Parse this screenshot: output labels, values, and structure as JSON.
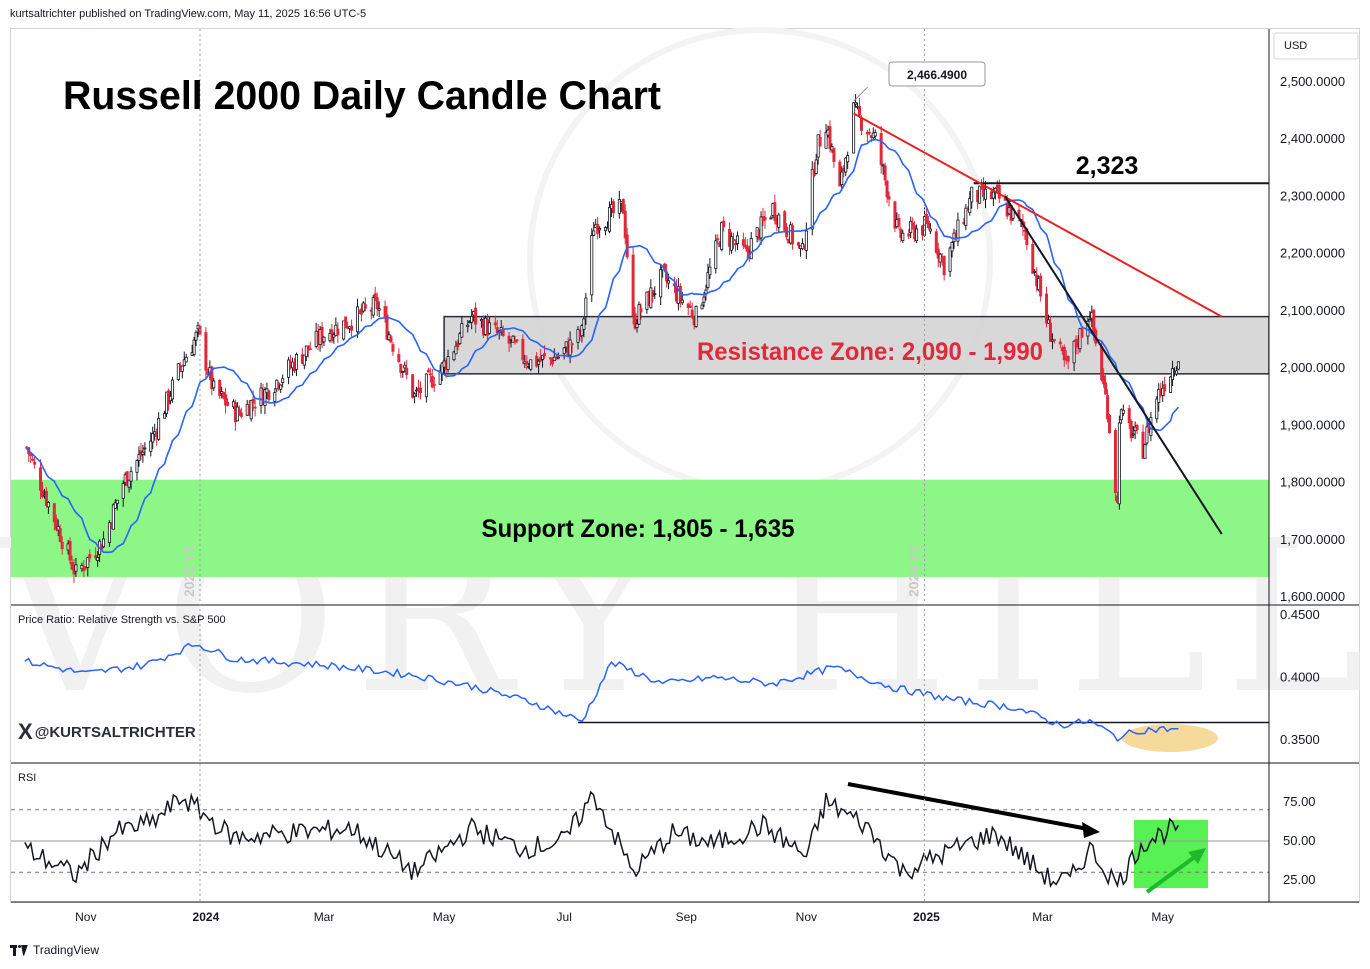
{
  "header": {
    "published": "kurtsaltrichter published on TradingView.com, May 11, 2025 16:56 UTC-5"
  },
  "footer": {
    "brand": "TradingView"
  },
  "handle": {
    "x_icon": "X",
    "name": "@KURTSALTRICHTER"
  },
  "watermark": "IVORY HILL",
  "colors": {
    "up": "#131722",
    "down": "#e0293b",
    "ma": "#2962ff",
    "resistance_line": "#e82020",
    "support_fill": "#86f57f",
    "resistance_fill": "#d4d4d4",
    "ratio_highlight": "#f5d48a",
    "rsi_highlight": "#4ef04a"
  },
  "chart_data": [
    {
      "type": "candlestick",
      "title": "Russell 2000 Daily Candle Chart",
      "currency": "USD",
      "ylim": [
        1590,
        2550
      ],
      "y_ticks": [
        "2,500.0000",
        "2,400.0000",
        "2,300.0000",
        "2,200.0000",
        "2,100.0000",
        "2,000.0000",
        "1,900.0000",
        "1,800.0000",
        "1,700.0000",
        "1,600.0000"
      ],
      "x_ticks": [
        "Nov",
        "2024",
        "Mar",
        "May",
        "Jul",
        "Sep",
        "Nov",
        "2025",
        "Mar",
        "May"
      ],
      "year_end_labels": [
        "2023 YE",
        "2024 YE"
      ],
      "series_anchor_closes": [
        [
          "2023-10-01",
          1870
        ],
        [
          "2023-10-10",
          1790
        ],
        [
          "2023-10-27",
          1640
        ],
        [
          "2023-11-10",
          1700
        ],
        [
          "2023-11-20",
          1800
        ],
        [
          "2023-12-05",
          1880
        ],
        [
          "2023-12-20",
          2010
        ],
        [
          "2023-12-28",
          2060
        ],
        [
          "2024-01-05",
          1960
        ],
        [
          "2024-01-17",
          1920
        ],
        [
          "2024-02-01",
          1960
        ],
        [
          "2024-02-15",
          2010
        ],
        [
          "2024-03-01",
          2060
        ],
        [
          "2024-03-13",
          2080
        ],
        [
          "2024-03-28",
          2110
        ],
        [
          "2024-04-16",
          1950
        ],
        [
          "2024-04-30",
          2000
        ],
        [
          "2024-05-15",
          2090
        ],
        [
          "2024-06-01",
          2050
        ],
        [
          "2024-06-14",
          2010
        ],
        [
          "2024-06-28",
          2020
        ],
        [
          "2024-07-10",
          2060
        ],
        [
          "2024-07-16",
          2250
        ],
        [
          "2024-07-31",
          2280
        ],
        [
          "2024-08-05",
          2080
        ],
        [
          "2024-08-20",
          2160
        ],
        [
          "2024-09-06",
          2090
        ],
        [
          "2024-09-19",
          2240
        ],
        [
          "2024-10-01",
          2200
        ],
        [
          "2024-10-15",
          2280
        ],
        [
          "2024-10-30",
          2200
        ],
        [
          "2024-11-06",
          2380
        ],
        [
          "2024-11-11",
          2430
        ],
        [
          "2024-11-18",
          2310
        ],
        [
          "2024-11-25",
          2450
        ],
        [
          "2024-12-06",
          2400
        ],
        [
          "2024-12-18",
          2230
        ],
        [
          "2025-01-02",
          2250
        ],
        [
          "2025-01-10",
          2180
        ],
        [
          "2025-01-24",
          2300
        ],
        [
          "2025-02-06",
          2300
        ],
        [
          "2025-02-20",
          2240
        ],
        [
          "2025-03-04",
          2070
        ],
        [
          "2025-03-13",
          2000
        ],
        [
          "2025-03-25",
          2100
        ],
        [
          "2025-04-03",
          1930
        ],
        [
          "2025-04-08",
          1760
        ],
        [
          "2025-04-09",
          1920
        ],
        [
          "2025-04-21",
          1860
        ],
        [
          "2025-04-28",
          1950
        ],
        [
          "2025-05-09",
          2020
        ]
      ],
      "last_close": 2020,
      "annotations": [
        {
          "text": "2,466.4900",
          "kind": "high-callout",
          "date": "2024-11-25",
          "value": 2466.49
        },
        {
          "text": "2,323",
          "kind": "horizontal-level",
          "value": 2323
        },
        {
          "text": "Resistance Zone: 2,090 - 1,990",
          "kind": "zone",
          "from": 1990,
          "to": 2090
        },
        {
          "text": "Support Zone: 1,805 - 1,635",
          "kind": "zone",
          "from": 1635,
          "to": 1805
        }
      ],
      "trendlines": [
        {
          "kind": "resistance",
          "from": [
            "2024-11-25",
            2445
          ],
          "to": [
            "2025-05-31",
            2090
          ]
        },
        {
          "kind": "breakout",
          "from": [
            "2025-02-10",
            2300
          ],
          "to": [
            "2025-05-31",
            1710
          ]
        }
      ],
      "moving_average": true
    },
    {
      "type": "line",
      "title": "Price Ratio: Relative Strength vs. S&P 500",
      "ylim": [
        0.33,
        0.455
      ],
      "y_ticks": [
        "0.4500",
        "0.4000",
        "0.3500"
      ],
      "x": [
        "2023-10-01",
        "2023-11-01",
        "2023-12-01",
        "2023-12-27",
        "2024-01-15",
        "2024-03-01",
        "2024-04-15",
        "2024-05-15",
        "2024-06-15",
        "2024-07-10",
        "2024-07-25",
        "2024-08-20",
        "2024-09-15",
        "2024-10-15",
        "2024-11-15",
        "2024-12-15",
        "2025-01-15",
        "2025-02-15",
        "2025-03-10",
        "2025-03-25",
        "2025-04-08",
        "2025-04-20",
        "2025-05-09"
      ],
      "values": [
        0.413,
        0.403,
        0.41,
        0.427,
        0.415,
        0.41,
        0.402,
        0.393,
        0.38,
        0.365,
        0.412,
        0.395,
        0.4,
        0.395,
        0.408,
        0.392,
        0.382,
        0.376,
        0.362,
        0.365,
        0.352,
        0.358,
        0.359
      ],
      "support_level": 0.364
    },
    {
      "type": "line",
      "title": "RSI",
      "ylim": [
        0,
        100
      ],
      "y_ticks": [
        "75.00",
        "50.00",
        "25.00"
      ],
      "bands": [
        30,
        70
      ],
      "x": [
        "2023-10-01",
        "2023-10-27",
        "2023-11-15",
        "2023-12-05",
        "2023-12-20",
        "2024-01-15",
        "2024-02-10",
        "2024-03-15",
        "2024-04-16",
        "2024-05-15",
        "2024-06-10",
        "2024-07-01",
        "2024-07-16",
        "2024-08-05",
        "2024-08-25",
        "2024-09-15",
        "2024-10-10",
        "2024-11-01",
        "2024-11-11",
        "2024-12-01",
        "2024-12-20",
        "2025-01-15",
        "2025-02-05",
        "2025-03-05",
        "2025-03-15",
        "2025-03-25",
        "2025-04-08",
        "2025-04-20",
        "2025-05-09"
      ],
      "values": [
        45,
        28,
        55,
        62,
        78,
        52,
        55,
        58,
        30,
        58,
        45,
        50,
        80,
        30,
        55,
        48,
        60,
        40,
        75,
        60,
        30,
        45,
        55,
        25,
        25,
        45,
        22,
        48,
        60
      ]
    }
  ]
}
